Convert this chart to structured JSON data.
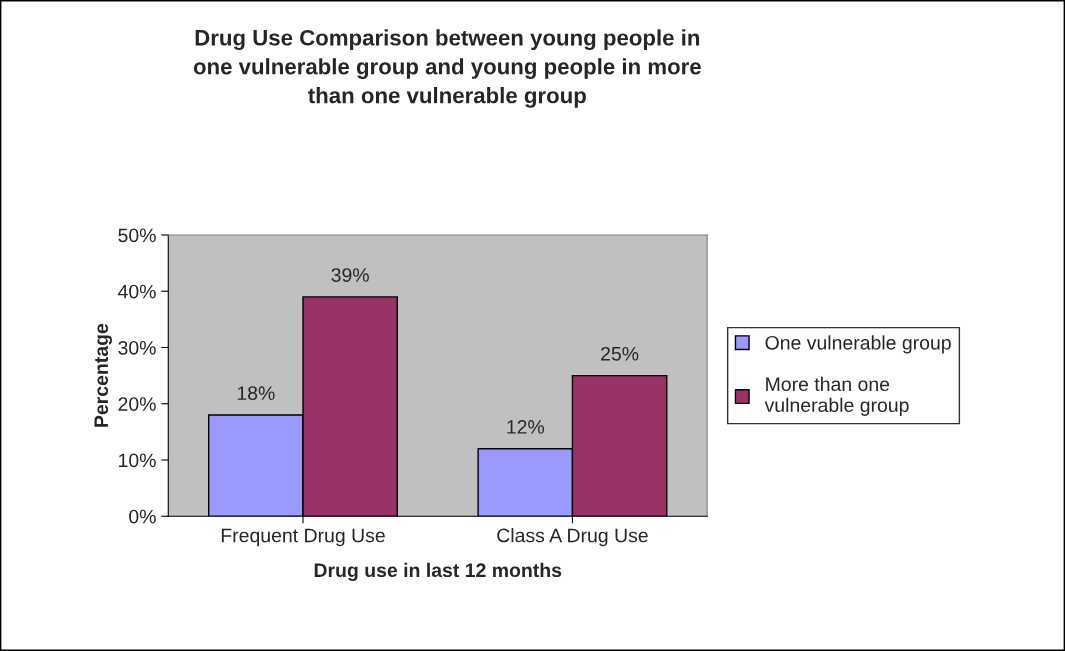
{
  "chart_data": {
    "type": "bar",
    "title": "Drug Use Comparison between young people in\none vulnerable group and young people in more\nthan one vulnerable group",
    "xlabel": "Drug use in last 12 months",
    "ylabel": "Percentage",
    "categories": [
      "Frequent Drug Use",
      "Class A Drug Use"
    ],
    "series": [
      {
        "name": "One vulnerable group",
        "color": "#9999ff",
        "values": [
          18,
          12
        ],
        "value_labels": [
          "18%",
          "12%"
        ]
      },
      {
        "name": "More than one\nvulnerable group",
        "color": "#993366",
        "values": [
          39,
          25
        ],
        "value_labels": [
          "39%",
          "25%"
        ]
      }
    ],
    "ylim": [
      0,
      50
    ],
    "yticks": [
      {
        "value": 0,
        "label": "0%"
      },
      {
        "value": 10,
        "label": "10%"
      },
      {
        "value": 20,
        "label": "20%"
      },
      {
        "value": 30,
        "label": "30%"
      },
      {
        "value": 40,
        "label": "40%"
      },
      {
        "value": 50,
        "label": "50%"
      }
    ],
    "grid": false,
    "legend": "right"
  }
}
